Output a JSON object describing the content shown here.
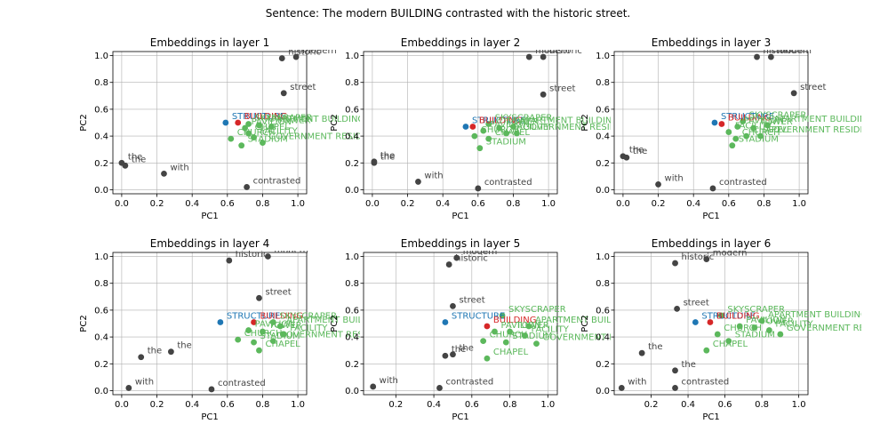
{
  "figure": {
    "title": "Sentence: The modern BUILDING contrasted with the historic street."
  },
  "colors": {
    "context": "#444444",
    "target": "#d62728",
    "anchor": "#1f77b4",
    "neighbor": "#5cb85c",
    "grid": "#b0b0b0"
  },
  "chart_data": [
    {
      "type": "scatter",
      "title": "Embeddings in layer 1",
      "xlabel": "PC1",
      "ylabel": "PC2",
      "xlim": [
        -0.05,
        1.05
      ],
      "ylim": [
        -0.03,
        1.03
      ],
      "xticks": [
        "0.0",
        "0.2",
        "0.4",
        "0.6",
        "0.8",
        "1.0"
      ],
      "yticks": [
        "0.0",
        "0.2",
        "0.4",
        "0.6",
        "0.8",
        "1.0"
      ],
      "grid": true,
      "points": [
        {
          "label": "historic",
          "x": 0.91,
          "y": 0.98,
          "group": "context"
        },
        {
          "label": "modern",
          "x": 0.99,
          "y": 0.99,
          "group": "context"
        },
        {
          "label": "street",
          "x": 0.92,
          "y": 0.72,
          "group": "context"
        },
        {
          "label": "the",
          "x": 0.0,
          "y": 0.2,
          "group": "context"
        },
        {
          "label": "the",
          "x": 0.02,
          "y": 0.18,
          "group": "context"
        },
        {
          "label": "with",
          "x": 0.24,
          "y": 0.12,
          "group": "context"
        },
        {
          "label": "contrasted",
          "x": 0.71,
          "y": 0.02,
          "group": "context"
        },
        {
          "label": "STRUCTURE",
          "x": 0.59,
          "y": 0.5,
          "group": "anchor"
        },
        {
          "label": "BUILDING",
          "x": 0.66,
          "y": 0.5,
          "group": "target"
        },
        {
          "label": "SKYSCRAPER",
          "x": 0.72,
          "y": 0.49,
          "group": "neighbor"
        },
        {
          "label": "APARTMENT BUILDING",
          "x": 0.78,
          "y": 0.48,
          "group": "neighbor"
        },
        {
          "label": "PAVILION",
          "x": 0.7,
          "y": 0.46,
          "group": "neighbor"
        },
        {
          "label": "TOWER",
          "x": 0.85,
          "y": 0.47,
          "group": "neighbor"
        },
        {
          "label": "FACILITY",
          "x": 0.75,
          "y": 0.39,
          "group": "neighbor"
        },
        {
          "label": "CHURCH",
          "x": 0.62,
          "y": 0.38,
          "group": "neighbor"
        },
        {
          "label": "STADIUM",
          "x": 0.68,
          "y": 0.33,
          "group": "neighbor"
        },
        {
          "label": "GOVERNMENT RESIDENCE",
          "x": 0.8,
          "y": 0.35,
          "group": "neighbor"
        },
        {
          "label": "CHAPEL",
          "x": 0.72,
          "y": 0.42,
          "group": "neighbor"
        }
      ]
    },
    {
      "type": "scatter",
      "title": "Embeddings in layer 2",
      "xlabel": "PC1",
      "ylabel": "PC2",
      "xlim": [
        -0.05,
        1.05
      ],
      "ylim": [
        -0.03,
        1.03
      ],
      "xticks": [
        "0.0",
        "0.2",
        "0.4",
        "0.6",
        "0.8",
        "1.0"
      ],
      "yticks": [
        "0.0",
        "0.2",
        "0.4",
        "0.6",
        "0.8",
        "1.0"
      ],
      "grid": true,
      "points": [
        {
          "label": "modern",
          "x": 0.89,
          "y": 0.99,
          "group": "context"
        },
        {
          "label": "historic",
          "x": 0.97,
          "y": 0.99,
          "group": "context"
        },
        {
          "label": "street",
          "x": 0.97,
          "y": 0.71,
          "group": "context"
        },
        {
          "label": "the",
          "x": 0.01,
          "y": 0.21,
          "group": "context"
        },
        {
          "label": "the",
          "x": 0.01,
          "y": 0.2,
          "group": "context"
        },
        {
          "label": "with",
          "x": 0.26,
          "y": 0.06,
          "group": "context"
        },
        {
          "label": "contrasted",
          "x": 0.6,
          "y": 0.01,
          "group": "context"
        },
        {
          "label": "STRUCTURE",
          "x": 0.53,
          "y": 0.47,
          "group": "anchor"
        },
        {
          "label": "BUILDING",
          "x": 0.57,
          "y": 0.47,
          "group": "target"
        },
        {
          "label": "SKYSCRAPER",
          "x": 0.66,
          "y": 0.49,
          "group": "neighbor"
        },
        {
          "label": "APARTMENT BUILDING",
          "x": 0.8,
          "y": 0.47,
          "group": "neighbor"
        },
        {
          "label": "PAVILION",
          "x": 0.63,
          "y": 0.44,
          "group": "neighbor"
        },
        {
          "label": "TOWER",
          "x": 0.72,
          "y": 0.46,
          "group": "neighbor"
        },
        {
          "label": "FACILITY",
          "x": 0.76,
          "y": 0.42,
          "group": "neighbor"
        },
        {
          "label": "CHURCH",
          "x": 0.58,
          "y": 0.4,
          "group": "neighbor"
        },
        {
          "label": "STADIUM",
          "x": 0.61,
          "y": 0.31,
          "group": "neighbor"
        },
        {
          "label": "GOVERNMENT RESIDENCE",
          "x": 0.82,
          "y": 0.42,
          "group": "neighbor"
        },
        {
          "label": "CHAPEL",
          "x": 0.66,
          "y": 0.38,
          "group": "neighbor"
        }
      ]
    },
    {
      "type": "scatter",
      "title": "Embeddings in layer 3",
      "xlabel": "PC1",
      "ylabel": "PC2",
      "xlim": [
        -0.05,
        1.05
      ],
      "ylim": [
        -0.03,
        1.03
      ],
      "xticks": [
        "0.0",
        "0.2",
        "0.4",
        "0.6",
        "0.8",
        "1.0"
      ],
      "yticks": [
        "0.0",
        "0.2",
        "0.4",
        "0.6",
        "0.8",
        "1.0"
      ],
      "grid": true,
      "points": [
        {
          "label": "historic",
          "x": 0.76,
          "y": 0.99,
          "group": "context"
        },
        {
          "label": "modern",
          "x": 0.84,
          "y": 0.99,
          "group": "context"
        },
        {
          "label": "street",
          "x": 0.97,
          "y": 0.72,
          "group": "context"
        },
        {
          "label": "the",
          "x": 0.0,
          "y": 0.25,
          "group": "context"
        },
        {
          "label": "the",
          "x": 0.02,
          "y": 0.24,
          "group": "context"
        },
        {
          "label": "with",
          "x": 0.2,
          "y": 0.04,
          "group": "context"
        },
        {
          "label": "contrasted",
          "x": 0.51,
          "y": 0.01,
          "group": "context"
        },
        {
          "label": "STRUCTURE",
          "x": 0.52,
          "y": 0.5,
          "group": "anchor"
        },
        {
          "label": "BUILDING",
          "x": 0.56,
          "y": 0.49,
          "group": "target"
        },
        {
          "label": "SKYSCRAPER",
          "x": 0.68,
          "y": 0.51,
          "group": "neighbor"
        },
        {
          "label": "APARTMENT BUILDING",
          "x": 0.82,
          "y": 0.48,
          "group": "neighbor"
        },
        {
          "label": "PAVILION",
          "x": 0.65,
          "y": 0.47,
          "group": "neighbor"
        },
        {
          "label": "TOWER",
          "x": 0.74,
          "y": 0.46,
          "group": "neighbor"
        },
        {
          "label": "FACILITY",
          "x": 0.6,
          "y": 0.43,
          "group": "neighbor"
        },
        {
          "label": "CHURCH",
          "x": 0.64,
          "y": 0.38,
          "group": "neighbor"
        },
        {
          "label": "STADIUM",
          "x": 0.62,
          "y": 0.33,
          "group": "neighbor"
        },
        {
          "label": "GOVERNMENT RESIDENCE",
          "x": 0.78,
          "y": 0.4,
          "group": "neighbor"
        },
        {
          "label": "CHAPEL",
          "x": 0.7,
          "y": 0.4,
          "group": "neighbor"
        }
      ]
    },
    {
      "type": "scatter",
      "title": "Embeddings in layer 4",
      "xlabel": "PC1",
      "ylabel": "PC2",
      "xlim": [
        -0.05,
        1.05
      ],
      "ylim": [
        -0.03,
        1.03
      ],
      "xticks": [
        "0.0",
        "0.2",
        "0.4",
        "0.6",
        "0.8",
        "1.0"
      ],
      "yticks": [
        "0.0",
        "0.2",
        "0.4",
        "0.6",
        "0.8",
        "1.0"
      ],
      "grid": true,
      "points": [
        {
          "label": "historic",
          "x": 0.61,
          "y": 0.97,
          "group": "context"
        },
        {
          "label": "modern",
          "x": 0.83,
          "y": 1.0,
          "group": "context"
        },
        {
          "label": "street",
          "x": 0.78,
          "y": 0.69,
          "group": "context"
        },
        {
          "label": "the",
          "x": 0.11,
          "y": 0.25,
          "group": "context"
        },
        {
          "label": "the",
          "x": 0.28,
          "y": 0.29,
          "group": "context"
        },
        {
          "label": "with",
          "x": 0.04,
          "y": 0.02,
          "group": "context"
        },
        {
          "label": "contrasted",
          "x": 0.51,
          "y": 0.01,
          "group": "context"
        },
        {
          "label": "STRUCTURE",
          "x": 0.56,
          "y": 0.51,
          "group": "anchor"
        },
        {
          "label": "BUILDING",
          "x": 0.75,
          "y": 0.51,
          "group": "target"
        },
        {
          "label": "SKYSCRAPER",
          "x": 0.86,
          "y": 0.51,
          "group": "neighbor"
        },
        {
          "label": "APARTMENT BUILDING",
          "x": 0.9,
          "y": 0.48,
          "group": "neighbor"
        },
        {
          "label": "PAVILION",
          "x": 0.72,
          "y": 0.45,
          "group": "neighbor"
        },
        {
          "label": "TOWER",
          "x": 0.8,
          "y": 0.44,
          "group": "neighbor"
        },
        {
          "label": "FACILITY",
          "x": 0.92,
          "y": 0.42,
          "group": "neighbor"
        },
        {
          "label": "CHURCH",
          "x": 0.66,
          "y": 0.38,
          "group": "neighbor"
        },
        {
          "label": "STADIUM",
          "x": 0.75,
          "y": 0.36,
          "group": "neighbor"
        },
        {
          "label": "GOVERNMENT RESIDENCE",
          "x": 0.86,
          "y": 0.37,
          "group": "neighbor"
        },
        {
          "label": "CHAPEL",
          "x": 0.78,
          "y": 0.3,
          "group": "neighbor"
        }
      ]
    },
    {
      "type": "scatter",
      "title": "Embeddings in layer 5",
      "xlabel": "PC1",
      "ylabel": "PC2",
      "xlim": [
        0.03,
        1.05
      ],
      "ylim": [
        -0.03,
        1.03
      ],
      "xticks": [
        "0.2",
        "0.4",
        "0.6",
        "0.8",
        "1.0"
      ],
      "yticks": [
        "0.0",
        "0.2",
        "0.4",
        "0.6",
        "0.8",
        "1.0"
      ],
      "grid": true,
      "points": [
        {
          "label": "modern",
          "x": 0.52,
          "y": 0.99,
          "group": "context"
        },
        {
          "label": "historic",
          "x": 0.48,
          "y": 0.94,
          "group": "context"
        },
        {
          "label": "street",
          "x": 0.5,
          "y": 0.63,
          "group": "context"
        },
        {
          "label": "the",
          "x": 0.5,
          "y": 0.27,
          "group": "context"
        },
        {
          "label": "the",
          "x": 0.46,
          "y": 0.26,
          "group": "context"
        },
        {
          "label": "with",
          "x": 0.08,
          "y": 0.03,
          "group": "context"
        },
        {
          "label": "contrasted",
          "x": 0.43,
          "y": 0.02,
          "group": "context"
        },
        {
          "label": "STRUCTURE",
          "x": 0.46,
          "y": 0.51,
          "group": "anchor"
        },
        {
          "label": "BUILDING",
          "x": 0.68,
          "y": 0.48,
          "group": "target"
        },
        {
          "label": "SKYSCRAPER",
          "x": 0.76,
          "y": 0.56,
          "group": "neighbor"
        },
        {
          "label": "APARTMENT BUILDING",
          "x": 0.9,
          "y": 0.48,
          "group": "neighbor"
        },
        {
          "label": "PAVILION",
          "x": 0.72,
          "y": 0.44,
          "group": "neighbor"
        },
        {
          "label": "TOWER",
          "x": 0.8,
          "y": 0.44,
          "group": "neighbor"
        },
        {
          "label": "FACILITY",
          "x": 0.88,
          "y": 0.41,
          "group": "neighbor"
        },
        {
          "label": "CHURCH",
          "x": 0.66,
          "y": 0.37,
          "group": "neighbor"
        },
        {
          "label": "STADIUM",
          "x": 0.78,
          "y": 0.36,
          "group": "neighbor"
        },
        {
          "label": "GOVERNMENT RESIDENCE",
          "x": 0.94,
          "y": 0.35,
          "group": "neighbor"
        },
        {
          "label": "CHAPEL",
          "x": 0.68,
          "y": 0.24,
          "group": "neighbor"
        }
      ]
    },
    {
      "type": "scatter",
      "title": "Embeddings in layer 6",
      "xlabel": "PC1",
      "ylabel": "PC2",
      "xlim": [
        0.0,
        1.05
      ],
      "ylim": [
        -0.03,
        1.03
      ],
      "xticks": [
        "0.2",
        "0.4",
        "0.6",
        "0.8",
        "1.0"
      ],
      "yticks": [
        "0.0",
        "0.2",
        "0.4",
        "0.6",
        "0.8",
        "1.0"
      ],
      "grid": true,
      "points": [
        {
          "label": "modern",
          "x": 0.5,
          "y": 0.98,
          "group": "context"
        },
        {
          "label": "historic",
          "x": 0.33,
          "y": 0.95,
          "group": "context"
        },
        {
          "label": "street",
          "x": 0.34,
          "y": 0.61,
          "group": "context"
        },
        {
          "label": "the",
          "x": 0.15,
          "y": 0.28,
          "group": "context"
        },
        {
          "label": "the",
          "x": 0.33,
          "y": 0.15,
          "group": "context"
        },
        {
          "label": "with",
          "x": 0.04,
          "y": 0.02,
          "group": "context"
        },
        {
          "label": "contrasted",
          "x": 0.33,
          "y": 0.02,
          "group": "context"
        },
        {
          "label": "STRUCTURE",
          "x": 0.44,
          "y": 0.51,
          "group": "anchor"
        },
        {
          "label": "BUILDING",
          "x": 0.52,
          "y": 0.51,
          "group": "target"
        },
        {
          "label": "SKYSCRAPER",
          "x": 0.58,
          "y": 0.56,
          "group": "neighbor"
        },
        {
          "label": "APARTMENT BUILDING",
          "x": 0.8,
          "y": 0.52,
          "group": "neighbor"
        },
        {
          "label": "PAVILION",
          "x": 0.68,
          "y": 0.48,
          "group": "neighbor"
        },
        {
          "label": "TOWER",
          "x": 0.76,
          "y": 0.47,
          "group": "neighbor"
        },
        {
          "label": "FACILITY",
          "x": 0.84,
          "y": 0.45,
          "group": "neighbor"
        },
        {
          "label": "CHURCH",
          "x": 0.56,
          "y": 0.42,
          "group": "neighbor"
        },
        {
          "label": "STADIUM",
          "x": 0.62,
          "y": 0.37,
          "group": "neighbor"
        },
        {
          "label": "GOVERNMENT RESIDENCE",
          "x": 0.9,
          "y": 0.42,
          "group": "neighbor"
        },
        {
          "label": "CHAPEL",
          "x": 0.5,
          "y": 0.3,
          "group": "neighbor"
        }
      ]
    }
  ]
}
